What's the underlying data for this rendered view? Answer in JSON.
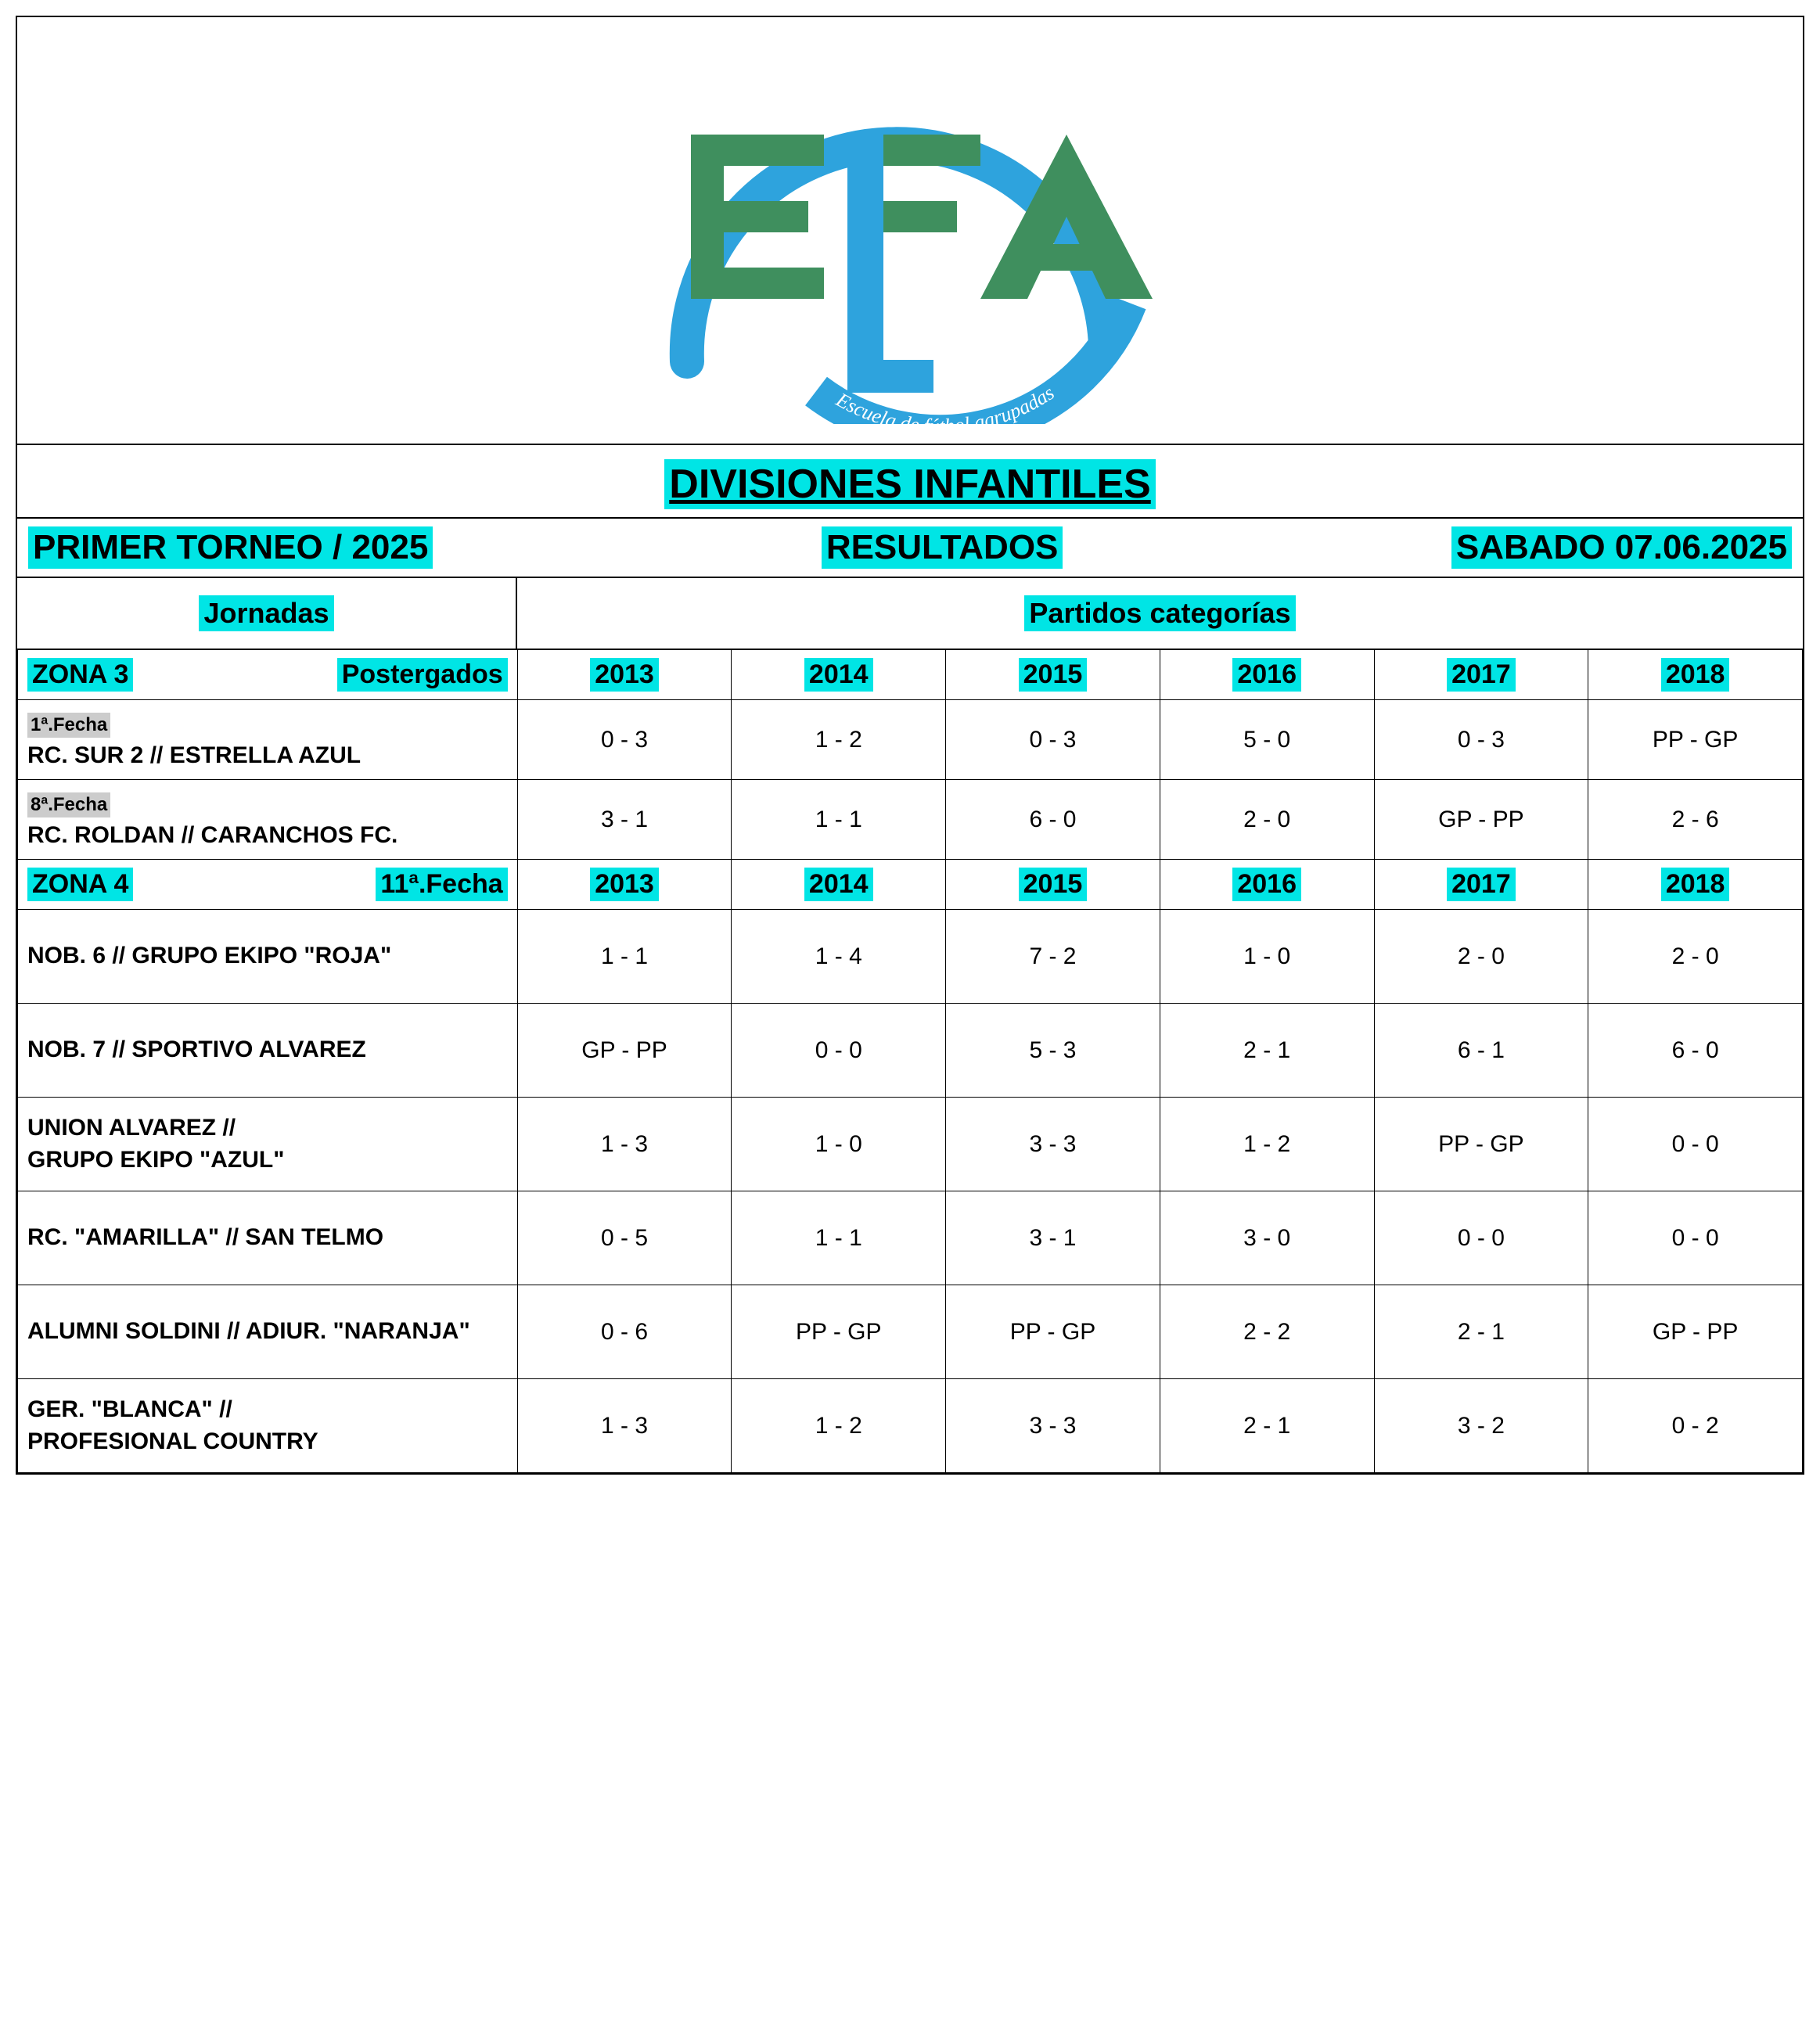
{
  "colors": {
    "highlight": "#00e5e5",
    "gray_highlight": "#cccccc",
    "border": "#000000",
    "logo_ring": "#2ea3dd",
    "logo_letters": "#3f8f5e",
    "logo_banner_text": "#ffffff"
  },
  "logo": {
    "letters": "EFA",
    "banner_text": "Escuela de fútbol agrupadas"
  },
  "title": "DIVISIONES INFANTILES",
  "subtitle": {
    "left": "PRIMER TORNEO / 2025",
    "center": "RESULTADOS",
    "right": "SABADO 07.06.2025"
  },
  "column_headers": {
    "left": "Jornadas",
    "right": "Partidos categorías"
  },
  "categories": [
    "2013",
    "2014",
    "2015",
    "2016",
    "2017",
    "2018"
  ],
  "zones": [
    {
      "zone_label": "ZONA 3",
      "zone_right": "Postergados",
      "matches": [
        {
          "fecha": "1ª.Fecha",
          "teams": "RC. SUR 2 // ESTRELLA AZUL",
          "scores": [
            "0 - 3",
            "1 - 2",
            "0 - 3",
            "5 - 0",
            "0 - 3",
            "PP - GP"
          ]
        },
        {
          "fecha": "8ª.Fecha",
          "teams": "RC. ROLDAN // CARANCHOS FC.",
          "scores": [
            "3 - 1",
            "1 - 1",
            "6 - 0",
            "2 - 0",
            "GP - PP",
            "2 - 6"
          ]
        }
      ]
    },
    {
      "zone_label": "ZONA  4",
      "zone_right": "11ª.Fecha",
      "matches": [
        {
          "fecha": "",
          "teams": "NOB. 6 // GRUPO EKIPO \"ROJA\"",
          "scores": [
            "1 - 1",
            "1 - 4",
            "7 - 2",
            "1 - 0",
            "2 - 0",
            "2 - 0"
          ]
        },
        {
          "fecha": "",
          "teams": "NOB. 7 // SPORTIVO ALVAREZ",
          "scores": [
            "GP - PP",
            "0 - 0",
            "5 - 3",
            "2 - 1",
            "6 - 1",
            "6 - 0"
          ]
        },
        {
          "fecha": "",
          "teams": "UNION ALVAREZ //\nGRUPO EKIPO \"AZUL\"",
          "scores": [
            "1 - 3",
            "1 - 0",
            "3 - 3",
            "1 - 2",
            "PP - GP",
            "0 - 0"
          ]
        },
        {
          "fecha": "",
          "teams": "RC. \"AMARILLA\" // SAN TELMO",
          "scores": [
            "0 - 5",
            "1 - 1",
            "3 - 1",
            "3 - 0",
            "0 - 0",
            "0 - 0"
          ]
        },
        {
          "fecha": "",
          "teams": "ALUMNI SOLDINI // ADIUR. \"NARANJA\"",
          "scores": [
            "0 - 6",
            "PP - GP",
            "PP - GP",
            "2 - 2",
            "2 - 1",
            "GP - PP"
          ]
        },
        {
          "fecha": "",
          "teams": "GER. \"BLANCA\" //\nPROFESIONAL COUNTRY",
          "scores": [
            "1 - 3",
            "1 - 2",
            "3 - 3",
            "2 - 1",
            "3 - 2",
            "0 - 2"
          ]
        }
      ]
    }
  ]
}
